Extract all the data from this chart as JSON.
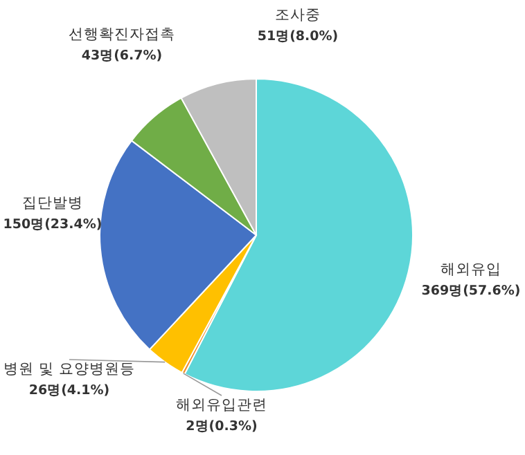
{
  "chart_data": {
    "type": "pie",
    "categories": [
      "해외유입",
      "해외유입관련",
      "병원 및 요양병원등",
      "집단발병",
      "선행확진자접촉",
      "조사중"
    ],
    "values": [
      369,
      2,
      26,
      150,
      43,
      51
    ],
    "value_labels": [
      "369명(57.6%)",
      "2명(0.3%)",
      "26명(4.1%)",
      "150명(23.4%)",
      "43명(6.7%)",
      "51명(8.0%)"
    ],
    "colors": [
      "#5dd6d8",
      "#f0902c",
      "#ffc000",
      "#4472c4",
      "#70ad47",
      "#bfbfbf"
    ],
    "legend": false
  }
}
